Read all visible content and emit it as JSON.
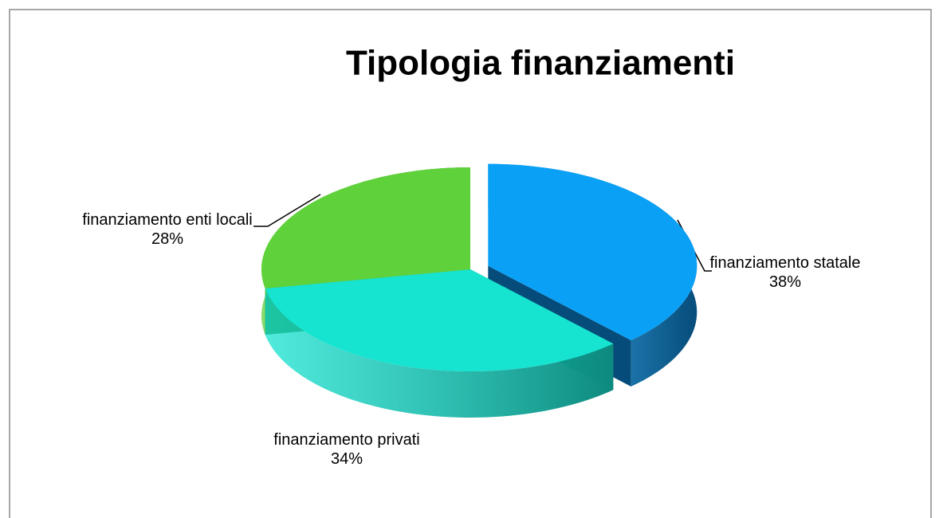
{
  "chart_data": {
    "type": "pie",
    "title": "Tipologia finanziamenti",
    "categories": [
      "finanziamento statale",
      "finanziamento privati",
      "finanziamento enti locali"
    ],
    "values": [
      38,
      34,
      28
    ],
    "value_labels": [
      "38%",
      "34%",
      "28%"
    ],
    "colors": [
      "#0aa0f5",
      "#16e3d0",
      "#5fd13a"
    ],
    "side_colors": [
      "#064c7a",
      "#0e8a7f",
      "#2e6a1a"
    ]
  }
}
